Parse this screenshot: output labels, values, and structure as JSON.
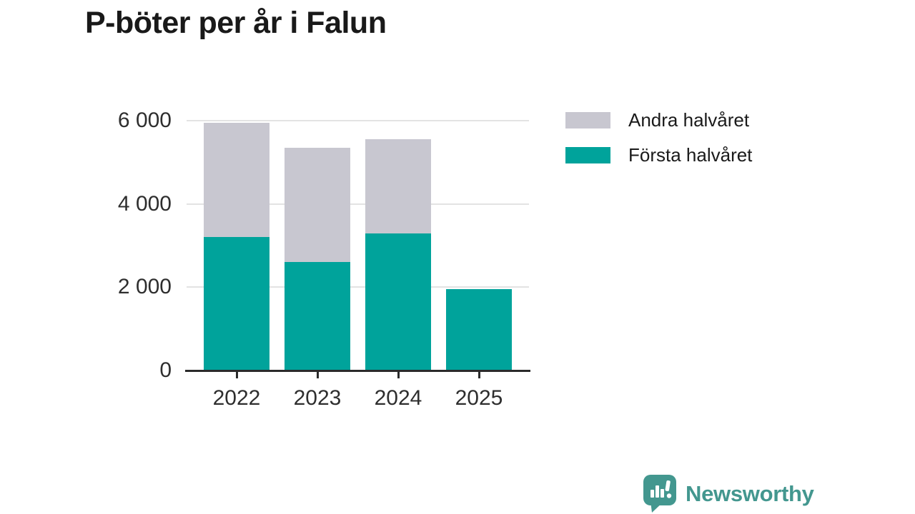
{
  "title": "P-böter per år i Falun",
  "legend": [
    {
      "label": "Andra halvåret",
      "color": "#c8c7d0"
    },
    {
      "label": "Första halvåret",
      "color": "#00a39b"
    }
  ],
  "chart_data": {
    "type": "bar",
    "stacked": true,
    "title": "P-böter per år i Falun",
    "categories": [
      "2022",
      "2023",
      "2024",
      "2025"
    ],
    "series": [
      {
        "name": "Första halvåret",
        "color": "#00a39b",
        "values": [
          3200,
          2600,
          3300,
          1950
        ]
      },
      {
        "name": "Andra halvåret",
        "color": "#c8c7d0",
        "values": [
          2750,
          2750,
          2250,
          0
        ]
      }
    ],
    "totals": [
      5950,
      5350,
      5550,
      1950
    ],
    "xlabel": "",
    "ylabel": "",
    "ylim": [
      0,
      6000
    ],
    "yticks": [
      0,
      2000,
      4000,
      6000
    ],
    "ytick_labels": [
      "0",
      "2 000",
      "4 000",
      "6 000"
    ],
    "grid": true,
    "legend_position": "right-top"
  },
  "branding": {
    "name": "Newsworthy",
    "color": "#43978f"
  }
}
